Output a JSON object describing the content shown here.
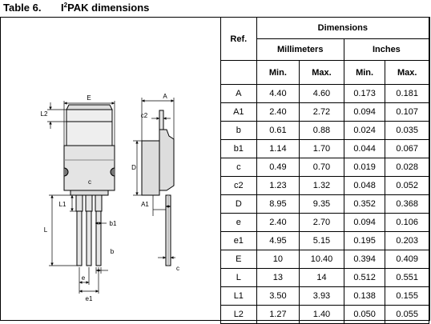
{
  "caption": {
    "table_number": "Table 6.",
    "title_prefix": "I",
    "title_sup": "2",
    "title_rest": "PAK dimensions"
  },
  "drawing_labels": {
    "E": "E",
    "L2": "L2",
    "D": "D",
    "c": "c",
    "L1": "L1",
    "L": "L",
    "b1": "b1",
    "b": "b",
    "e": "e",
    "e1": "e1",
    "A": "A",
    "c2": "c2",
    "A1": "A1"
  },
  "table": {
    "ref_header": "Ref.",
    "dimensions_header": "Dimensions",
    "mm_header": "Millimeters",
    "in_header": "Inches",
    "sub_headers": [
      "Min.",
      "Max.",
      "Min.",
      "Max."
    ],
    "rows": [
      {
        "ref": "A",
        "mm_min": "4.40",
        "mm_max": "4.60",
        "in_min": "0.173",
        "in_max": "0.181"
      },
      {
        "ref": "A1",
        "mm_min": "2.40",
        "mm_max": "2.72",
        "in_min": "0.094",
        "in_max": "0.107"
      },
      {
        "ref": "b",
        "mm_min": "0.61",
        "mm_max": "0.88",
        "in_min": "0.024",
        "in_max": "0.035"
      },
      {
        "ref": "b1",
        "mm_min": "1.14",
        "mm_max": "1.70",
        "in_min": "0.044",
        "in_max": "0.067"
      },
      {
        "ref": "c",
        "mm_min": "0.49",
        "mm_max": "0.70",
        "in_min": "0.019",
        "in_max": "0.028"
      },
      {
        "ref": "c2",
        "mm_min": "1.23",
        "mm_max": "1.32",
        "in_min": "0.048",
        "in_max": "0.052"
      },
      {
        "ref": "D",
        "mm_min": "8.95",
        "mm_max": "9.35",
        "in_min": "0.352",
        "in_max": "0.368"
      },
      {
        "ref": "e",
        "mm_min": "2.40",
        "mm_max": "2.70",
        "in_min": "0.094",
        "in_max": "0.106"
      },
      {
        "ref": "e1",
        "mm_min": "4.95",
        "mm_max": "5.15",
        "in_min": "0.195",
        "in_max": "0.203"
      },
      {
        "ref": "E",
        "mm_min": "10",
        "mm_max": "10.40",
        "in_min": "0.394",
        "in_max": "0.409"
      },
      {
        "ref": "L",
        "mm_min": "13",
        "mm_max": "14",
        "in_min": "0.512",
        "in_max": "0.551"
      },
      {
        "ref": "L1",
        "mm_min": "3.50",
        "mm_max": "3.93",
        "in_min": "0.138",
        "in_max": "0.155"
      },
      {
        "ref": "L2",
        "mm_min": "1.27",
        "mm_max": "1.40",
        "in_min": "0.050",
        "in_max": "0.055"
      }
    ]
  }
}
